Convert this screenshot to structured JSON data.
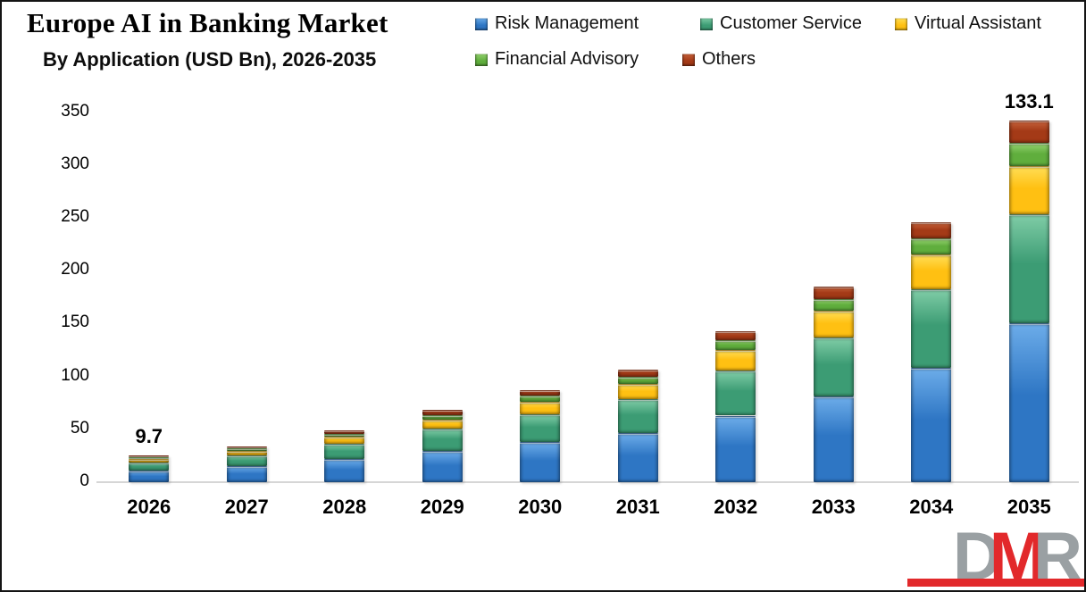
{
  "header": {
    "title": "Europe AI in Banking Market",
    "subtitle": "By Application (USD Bn), 2026-2035"
  },
  "chart_data": {
    "type": "bar",
    "stacked": true,
    "title": "Europe AI in Banking Market",
    "subtitle": "By Application (USD Bn), 2026-2035",
    "xlabel": "",
    "ylabel": "",
    "ylim": [
      0,
      350
    ],
    "yticks": [
      0,
      50,
      100,
      150,
      200,
      250,
      300,
      350
    ],
    "grid": false,
    "legend_position": "top-right",
    "categories": [
      "2026",
      "2027",
      "2028",
      "2029",
      "2030",
      "2031",
      "2032",
      "2033",
      "2034",
      "2035"
    ],
    "series": [
      {
        "name": "Risk Management",
        "color": "#2E76C4",
        "light": "#6CACE9",
        "values": [
          11.0,
          15.0,
          21.6,
          29.9,
          38.3,
          46.6,
          62.9,
          81.4,
          108.2,
          150.5
        ]
      },
      {
        "name": "Customer Service",
        "color": "#3C9C74",
        "light": "#7FCCA6",
        "values": [
          7.5,
          10.2,
          14.7,
          20.4,
          26.1,
          31.8,
          42.9,
          55.5,
          73.8,
          102.6
        ]
      },
      {
        "name": "Virtual Assistant",
        "color": "#FFC012",
        "light": "#FFDE55",
        "values": [
          3.4,
          4.6,
          6.6,
          9.2,
          11.7,
          14.3,
          19.3,
          25.0,
          33.2,
          46.2
        ]
      },
      {
        "name": "Financial Advisory",
        "color": "#60AE3D",
        "light": "#94D26F",
        "values": [
          1.6,
          2.1,
          3.0,
          4.2,
          5.4,
          6.6,
          8.9,
          11.5,
          15.4,
          21.3
        ]
      },
      {
        "name": "Others",
        "color": "#A43A17",
        "light": "#C5613A",
        "values": [
          1.5,
          2.1,
          3.1,
          4.3,
          5.5,
          6.7,
          9.0,
          11.6,
          15.4,
          21.4
        ]
      }
    ],
    "totals": [
      25.0,
      34.0,
      49.0,
      68.0,
      87.0,
      106.0,
      143.0,
      185.0,
      246.0,
      342.0
    ],
    "annotations": [
      {
        "category": "2026",
        "text": "9.7"
      },
      {
        "category": "2035",
        "text": "133.1"
      }
    ]
  },
  "logo": {
    "letters": [
      {
        "text": "D",
        "color": "#9AA0A3"
      },
      {
        "text": "M",
        "color": "#E2292B"
      },
      {
        "text": "R",
        "color": "#9AA0A3"
      }
    ],
    "bar_color": "#E2292B"
  }
}
